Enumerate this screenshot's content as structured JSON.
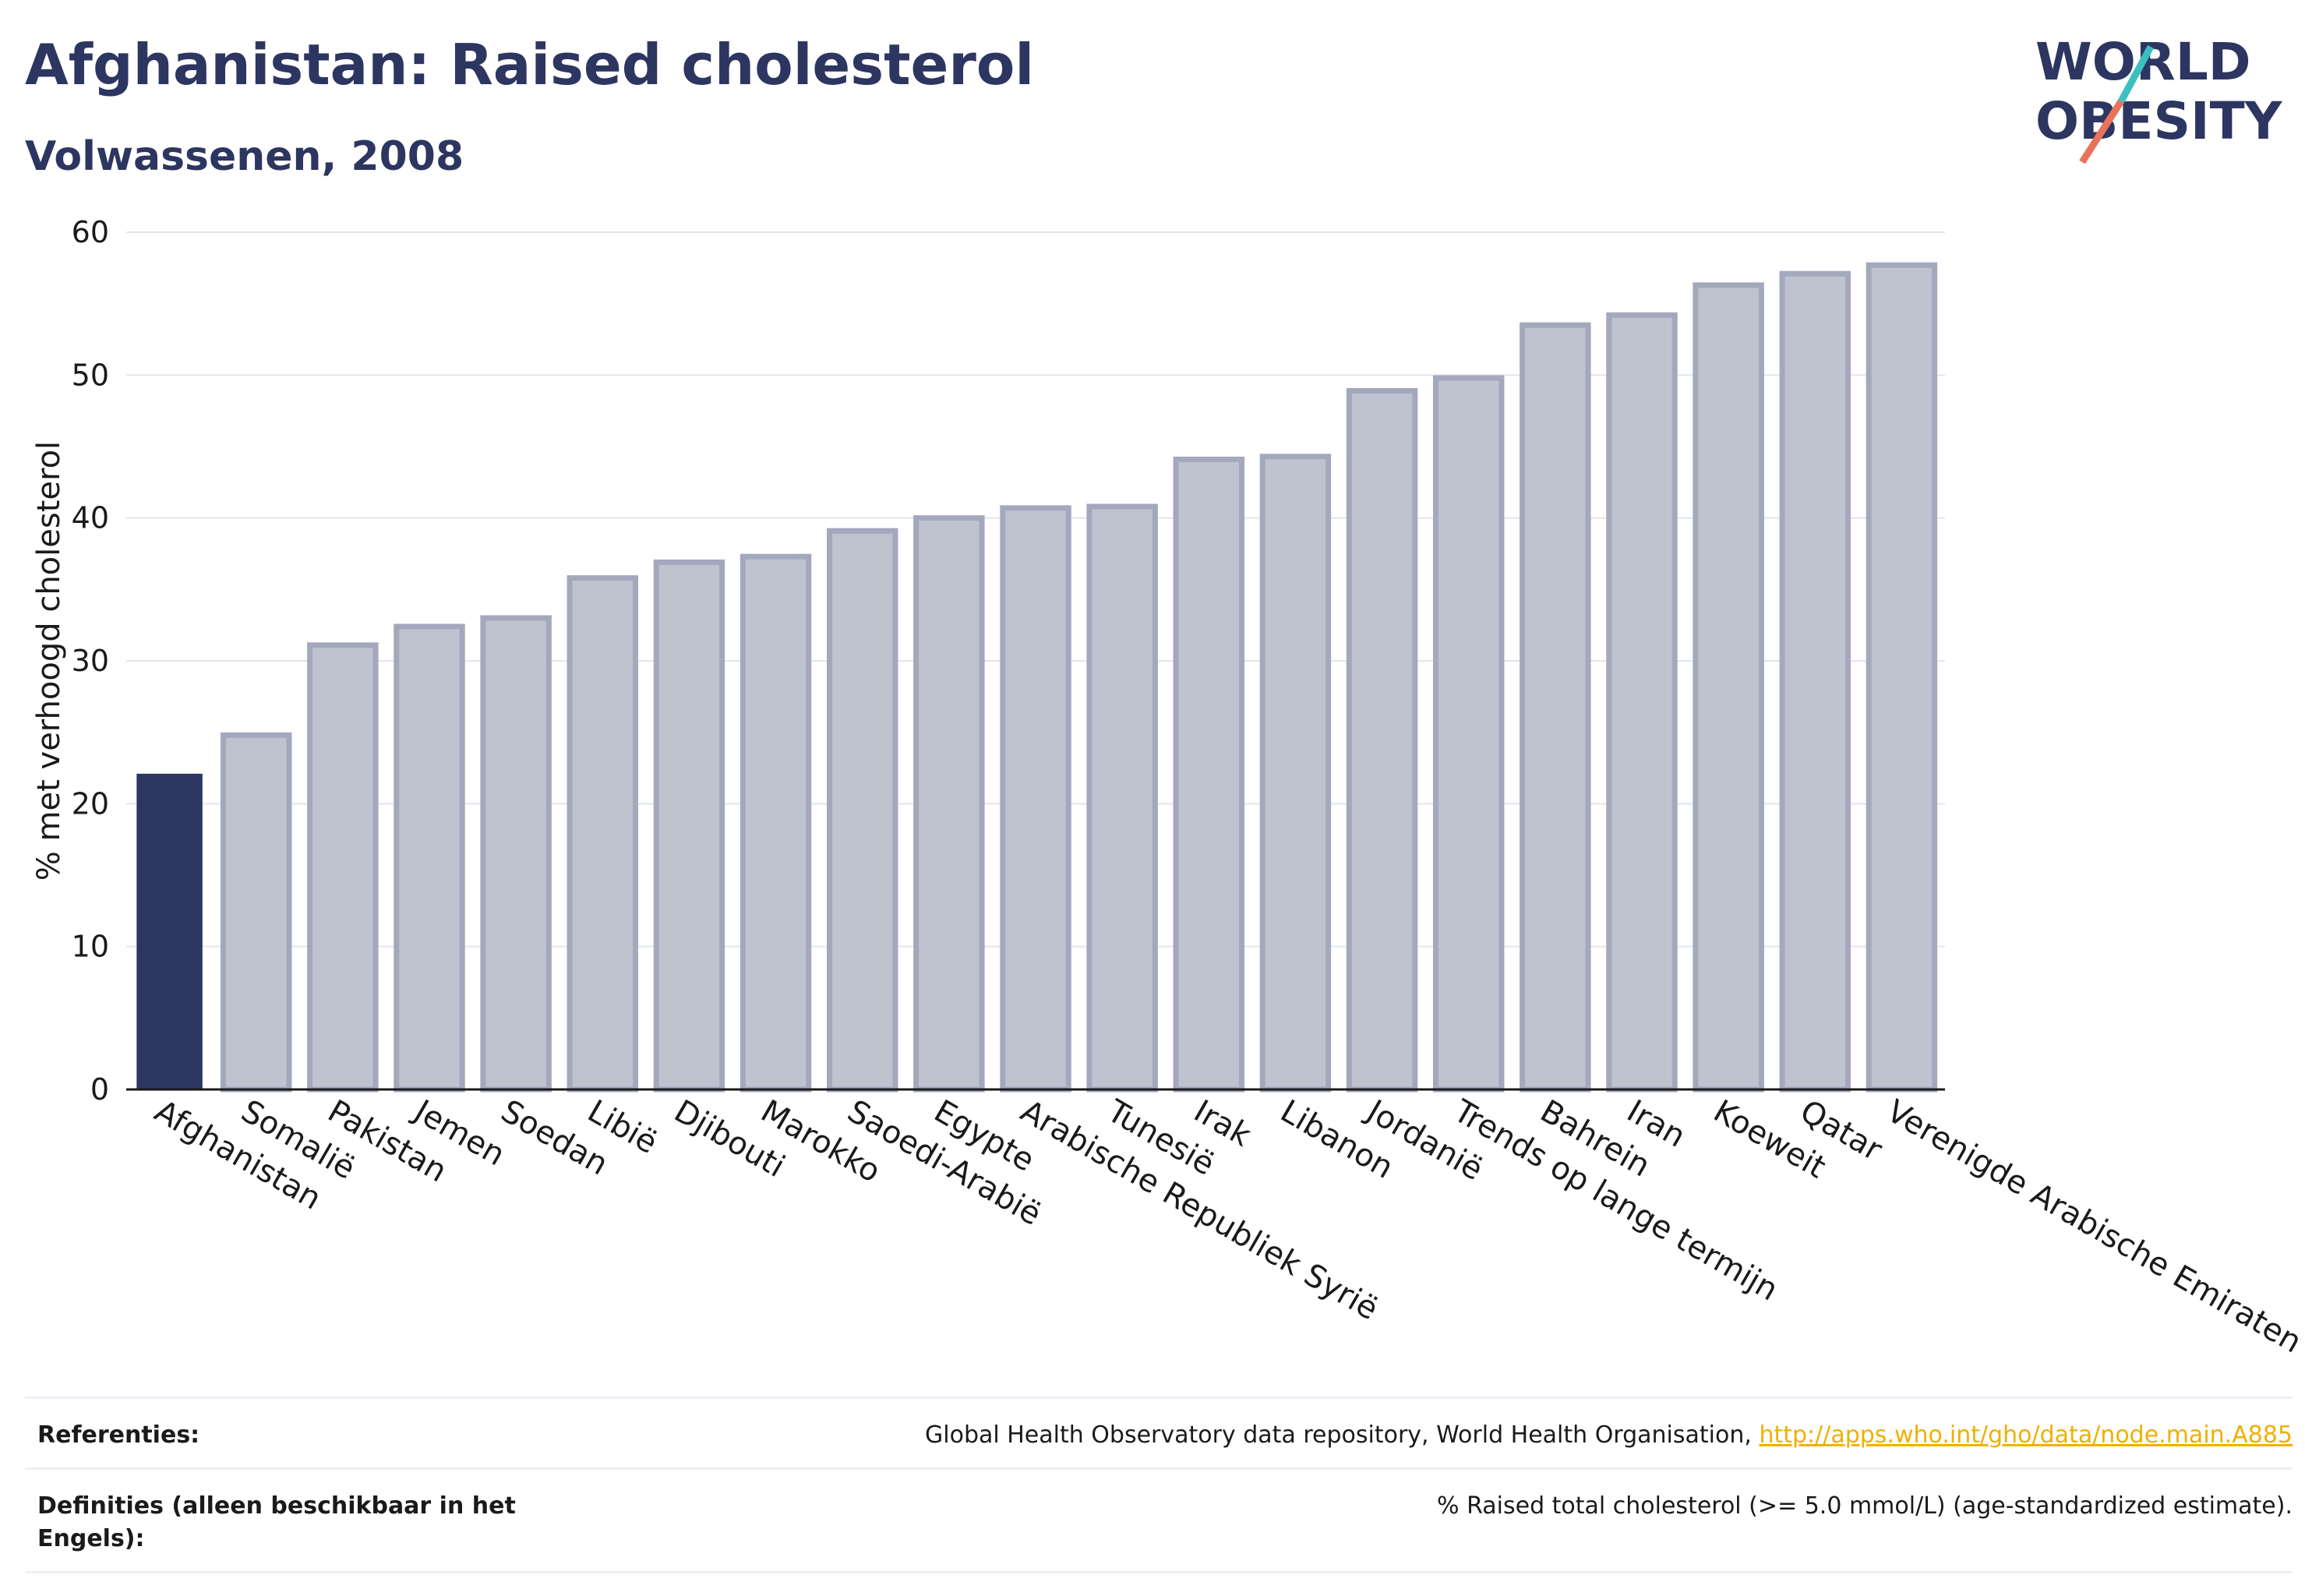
{
  "header": {
    "title": "Afghanistan: Raised cholesterol",
    "subtitle": "Volwassenen, 2008"
  },
  "logo": {
    "line1": "WORLD",
    "line2": "OBESITY",
    "colors": {
      "text": "#2d3561",
      "slash_top": "#3bbfbf",
      "slash_bottom": "#e8735a"
    }
  },
  "chart_data": {
    "type": "bar",
    "ylabel": "% met verhoogd cholesterol",
    "xlabel": "",
    "ylim": [
      0,
      60
    ],
    "yticks": [
      0,
      10,
      20,
      30,
      40,
      50,
      60
    ],
    "grid": true,
    "highlight_index": 0,
    "colors": {
      "highlight": "#2d3561",
      "bar_fill": "#bfc2cf",
      "bar_stroke": "#a3a8bd",
      "grid": "#e3e5ec"
    },
    "categories": [
      "Afghanistan",
      "Somalië",
      "Pakistan",
      "Jemen",
      "Soedan",
      "Libië",
      "Djibouti",
      "Marokko",
      "Saoedi-Arabië",
      "Egypte",
      "Arabische Republiek Syrië",
      "Tunesië",
      "Irak",
      "Libanon",
      "Jordanië",
      "Trends op lange termijn",
      "Bahrein",
      "Iran",
      "Koeweit",
      "Qatar",
      "Verenigde Arabische Emiraten"
    ],
    "values": [
      22.1,
      24.8,
      31.1,
      32.4,
      33.0,
      35.8,
      36.9,
      37.3,
      39.1,
      40.0,
      40.7,
      40.8,
      44.1,
      44.3,
      48.9,
      49.8,
      53.5,
      54.2,
      56.3,
      57.1,
      57.7
    ]
  },
  "footer": {
    "references_label": "Referenties:",
    "references_text": "Global Health Observatory data repository, World Health Organisation, ",
    "references_link": "http://apps.who.int/gho/data/node.main.A885",
    "definitions_label": "Definities (alleen beschikbaar in het Engels):",
    "definitions_text": "% Raised total cholesterol (>= 5.0 mmol/L) (age-standardized estimate)."
  }
}
